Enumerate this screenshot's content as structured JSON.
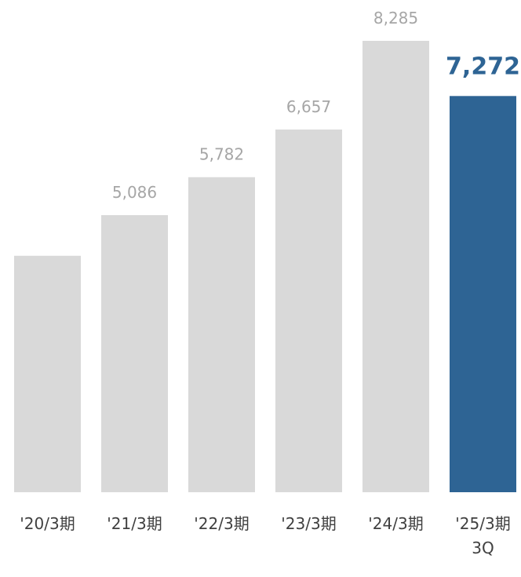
{
  "chart_data": {
    "type": "bar",
    "categories": [
      "'20/3期",
      "'21/3期",
      "'22/3期",
      "'23/3期",
      "'24/3期",
      "'25/3期\n3Q"
    ],
    "values": [
      4340,
      5086,
      5782,
      6657,
      8285,
      7272
    ],
    "value_labels": [
      null,
      "5,086",
      "5,782",
      "6,657",
      "8,285",
      "7,272"
    ],
    "colors": [
      "#d9d9d9",
      "#d9d9d9",
      "#d9d9d9",
      "#d9d9d9",
      "#d9d9d9",
      "#2e6494"
    ]
  }
}
